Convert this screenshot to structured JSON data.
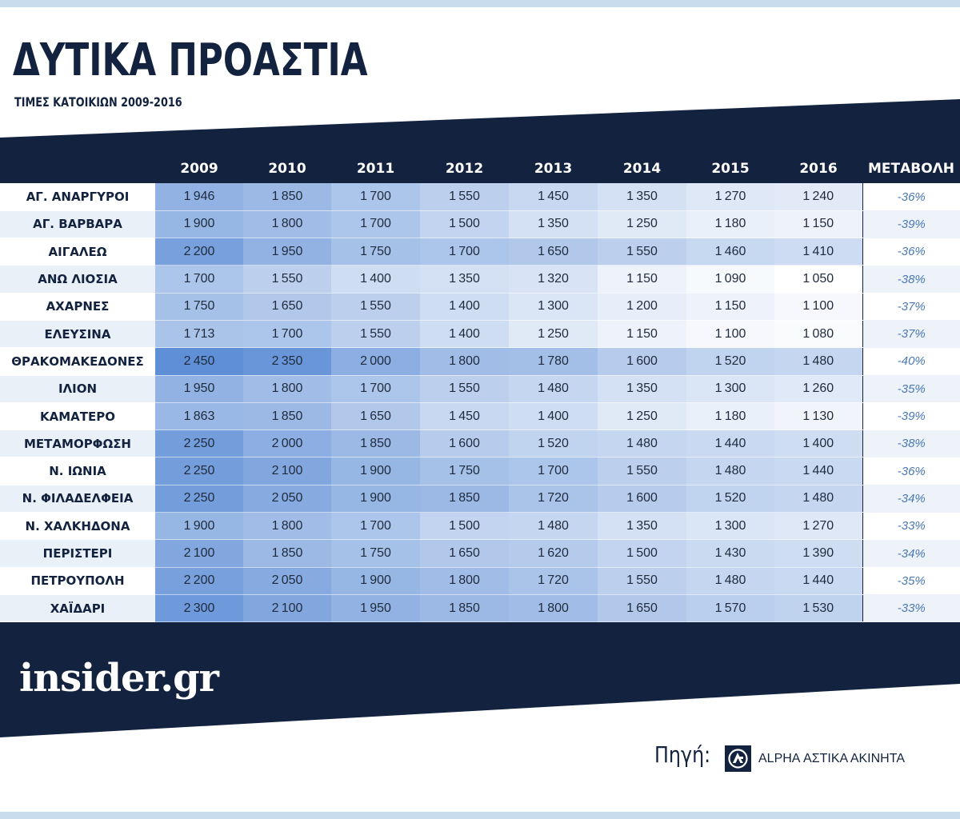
{
  "header": {
    "title": "ΔΥΤΙΚΑ ΠΡΟΑΣΤΙΑ",
    "subtitle": "ΤΙΜΕΣ ΚΑΤΟΙΚΙΩΝ 2009-2016"
  },
  "footer": {
    "brand": "insider.gr",
    "source_label": "Πηγή:",
    "source_name": "ALPHA ΑΣΤΙΚΑ ΑΚΙΝΗΤΑ",
    "source_icon": "alpha-bank-logo-icon"
  },
  "colors": {
    "navy": "#13233f",
    "heat_low": "#ffffff",
    "heat_high": "#5f8fd6",
    "change_text": "#4a78b3"
  },
  "chart_data": {
    "type": "table",
    "title": "ΔΥΤΙΚΑ ΠΡΟΑΣΤΙΑ",
    "subtitle": "ΤΙΜΕΣ ΚΑΤΟΙΚΙΩΝ 2009-2016",
    "columns": [
      "2009",
      "2010",
      "2011",
      "2012",
      "2013",
      "2014",
      "2015",
      "2016"
    ],
    "change_header": "ΜΕΤΑΒΟΛΗ",
    "rows": [
      {
        "name": "ΑΓ. ΑΝΑΡΓΥΡΟΙ",
        "values": [
          1946,
          1850,
          1700,
          1550,
          1450,
          1350,
          1270,
          1240
        ],
        "change": "-36%"
      },
      {
        "name": "ΑΓ. ΒΑΡΒΑΡΑ",
        "values": [
          1900,
          1800,
          1700,
          1500,
          1350,
          1250,
          1180,
          1150
        ],
        "change": "-39%"
      },
      {
        "name": "ΑΙΓΑΛΕΩ",
        "values": [
          2200,
          1950,
          1750,
          1700,
          1650,
          1550,
          1460,
          1410
        ],
        "change": "-36%"
      },
      {
        "name": "ΑΝΩ ΛΙΟΣΙΑ",
        "values": [
          1700,
          1550,
          1400,
          1350,
          1320,
          1150,
          1090,
          1050
        ],
        "change": "-38%"
      },
      {
        "name": "ΑΧΑΡΝΕΣ",
        "values": [
          1750,
          1650,
          1550,
          1400,
          1300,
          1200,
          1150,
          1100
        ],
        "change": "-37%"
      },
      {
        "name": "ΕΛΕΥΣΙΝΑ",
        "values": [
          1713,
          1700,
          1550,
          1400,
          1250,
          1150,
          1100,
          1080
        ],
        "change": "-37%"
      },
      {
        "name": "ΘΡΑΚΟΜΑΚΕΔΟΝΕΣ",
        "values": [
          2450,
          2350,
          2000,
          1800,
          1780,
          1600,
          1520,
          1480
        ],
        "change": "-40%"
      },
      {
        "name": "ΙΛΙΟΝ",
        "values": [
          1950,
          1800,
          1700,
          1550,
          1480,
          1350,
          1300,
          1260
        ],
        "change": "-35%"
      },
      {
        "name": "ΚΑΜΑΤΕΡΟ",
        "values": [
          1863,
          1850,
          1650,
          1450,
          1400,
          1250,
          1180,
          1130
        ],
        "change": "-39%"
      },
      {
        "name": "ΜΕΤΑΜΟΡΦΩΣΗ",
        "values": [
          2250,
          2000,
          1850,
          1600,
          1520,
          1480,
          1440,
          1400
        ],
        "change": "-38%"
      },
      {
        "name": "Ν. ΙΩΝΙΑ",
        "values": [
          2250,
          2100,
          1900,
          1750,
          1700,
          1550,
          1480,
          1440
        ],
        "change": "-36%"
      },
      {
        "name": "Ν. ΦΙΛΑΔΕΛΦΕΙΑ",
        "values": [
          2250,
          2050,
          1900,
          1850,
          1720,
          1600,
          1520,
          1480
        ],
        "change": "-34%"
      },
      {
        "name": "Ν. ΧΑΛΚΗΔΟΝΑ",
        "values": [
          1900,
          1800,
          1700,
          1500,
          1480,
          1350,
          1300,
          1270
        ],
        "change": "-33%"
      },
      {
        "name": "ΠΕΡΙΣΤΕΡΙ",
        "values": [
          2100,
          1850,
          1750,
          1650,
          1620,
          1500,
          1430,
          1390
        ],
        "change": "-34%"
      },
      {
        "name": "ΠΕΤΡΟΥΠΟΛΗ",
        "values": [
          2200,
          2050,
          1900,
          1800,
          1720,
          1550,
          1480,
          1440
        ],
        "change": "-35%"
      },
      {
        "name": "ΧΑΪΔΑΡΙ",
        "values": [
          2300,
          2100,
          1950,
          1850,
          1800,
          1650,
          1570,
          1530
        ],
        "change": "-33%"
      }
    ]
  }
}
